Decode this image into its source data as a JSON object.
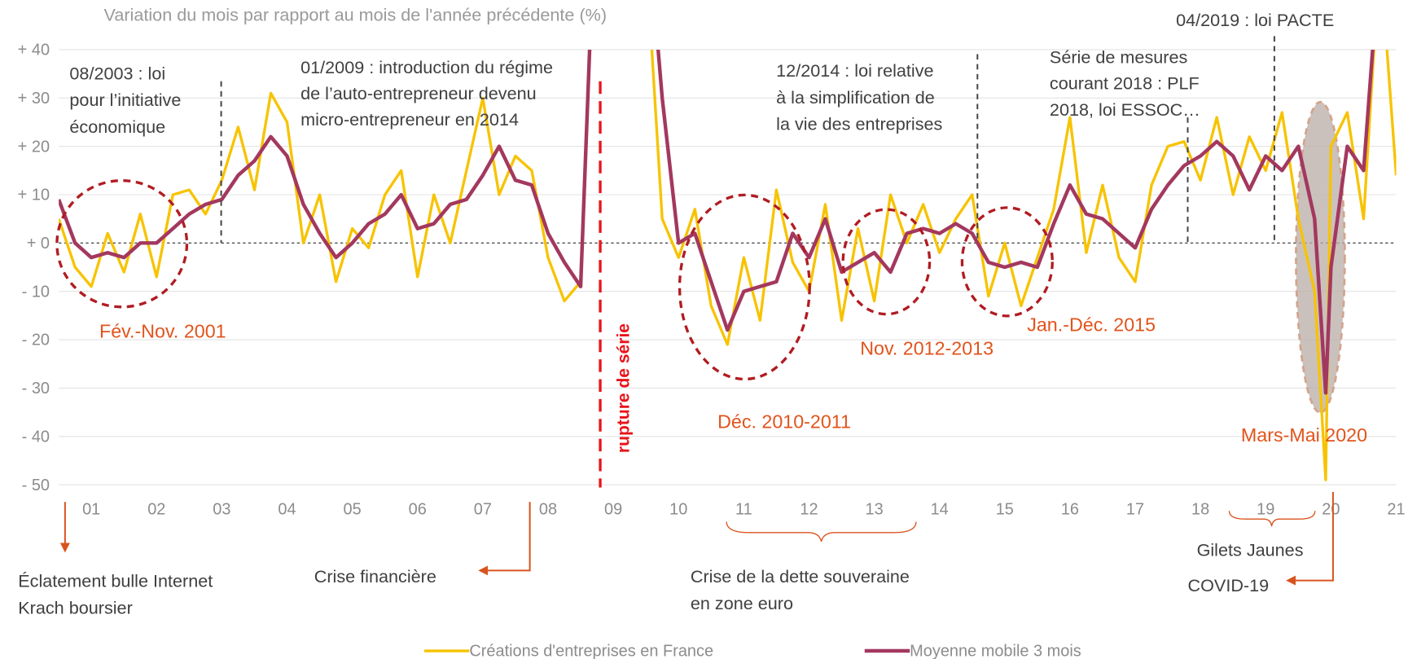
{
  "chart_data": {
    "type": "line",
    "subtitle": "Variation du mois par rapport au mois de l'année précédente (%)",
    "xlim": [
      2001,
      2021.5
    ],
    "ylim": [
      -50,
      40
    ],
    "grid": true,
    "xticks": [
      {
        "value": 2001.5,
        "label": "01"
      },
      {
        "value": 2002.5,
        "label": "02"
      },
      {
        "value": 2003.5,
        "label": "03"
      },
      {
        "value": 2004.5,
        "label": "04"
      },
      {
        "value": 2005.5,
        "label": "05"
      },
      {
        "value": 2006.5,
        "label": "06"
      },
      {
        "value": 2007.5,
        "label": "07"
      },
      {
        "value": 2008.5,
        "label": "08"
      },
      {
        "value": 2009.5,
        "label": "09"
      },
      {
        "value": 2010.5,
        "label": "10"
      },
      {
        "value": 2011.5,
        "label": "11"
      },
      {
        "value": 2012.5,
        "label": "12"
      },
      {
        "value": 2013.5,
        "label": "13"
      },
      {
        "value": 2014.5,
        "label": "14"
      },
      {
        "value": 2015.5,
        "label": "15"
      },
      {
        "value": 2016.5,
        "label": "16"
      },
      {
        "value": 2017.5,
        "label": "17"
      },
      {
        "value": 2018.5,
        "label": "18"
      },
      {
        "value": 2019.5,
        "label": "19"
      },
      {
        "value": 2020.5,
        "label": "20"
      },
      {
        "value": 2021.5,
        "label": "21"
      }
    ],
    "yticks": [
      {
        "value": 40,
        "label": "+ 40"
      },
      {
        "value": 30,
        "label": "+ 30"
      },
      {
        "value": 20,
        "label": "+ 20"
      },
      {
        "value": 10,
        "label": "+ 10"
      },
      {
        "value": 0,
        "label": "+ 0"
      },
      {
        "value": -10,
        "label": "- 10"
      },
      {
        "value": -20,
        "label": "- 20"
      },
      {
        "value": -30,
        "label": "- 30"
      },
      {
        "value": -40,
        "label": "- 40"
      },
      {
        "value": -50,
        "label": "- 50"
      }
    ],
    "x": [
      2001,
      2001.25,
      2001.5,
      2001.75,
      2002,
      2002.25,
      2002.5,
      2002.75,
      2003,
      2003.25,
      2003.5,
      2003.75,
      2004,
      2004.25,
      2004.5,
      2004.75,
      2005,
      2005.25,
      2005.5,
      2005.75,
      2006,
      2006.25,
      2006.5,
      2006.75,
      2007,
      2007.25,
      2007.5,
      2007.75,
      2008,
      2008.25,
      2008.5,
      2008.75,
      2009,
      2009.25,
      2009.5,
      2009.75,
      2010,
      2010.25,
      2010.5,
      2010.75,
      2011,
      2011.25,
      2011.5,
      2011.75,
      2012,
      2012.25,
      2012.5,
      2012.75,
      2013,
      2013.25,
      2013.5,
      2013.75,
      2014,
      2014.25,
      2014.5,
      2014.75,
      2015,
      2015.25,
      2015.5,
      2015.75,
      2016,
      2016.25,
      2016.5,
      2016.75,
      2017,
      2017.25,
      2017.5,
      2017.75,
      2018,
      2018.25,
      2018.5,
      2018.75,
      2019,
      2019.25,
      2019.5,
      2019.75,
      2020,
      2020.25,
      2020.42,
      2020.5,
      2020.75,
      2021,
      2021.25,
      2021.5
    ],
    "series": [
      {
        "name": "Créations d'entreprises en France",
        "color": "#f7c300",
        "width": 3,
        "values": [
          5,
          -5,
          -9,
          2,
          -6,
          6,
          -7,
          10,
          11,
          6,
          13,
          24,
          11,
          31,
          25,
          0,
          10,
          -8,
          3,
          -1,
          10,
          15,
          -7,
          10,
          0,
          15,
          30,
          10,
          18,
          15,
          -3,
          -12,
          -8,
          80,
          null,
          null,
          60,
          5,
          -3,
          7,
          -13,
          -21,
          -3,
          -16,
          11,
          -4,
          -10,
          8,
          -16,
          3,
          -12,
          10,
          0,
          8,
          -2,
          5,
          10,
          -11,
          0,
          -13,
          -3,
          7,
          26,
          -2,
          12,
          -3,
          -8,
          12,
          20,
          21,
          13,
          26,
          10,
          22,
          15,
          27,
          5,
          -10,
          -49,
          20,
          27,
          5,
          60,
          14
        ]
      },
      {
        "name": "Moyenne mobile 3 mois",
        "color": "#a3385f",
        "width": 4,
        "values": [
          9,
          0,
          -3,
          -2,
          -3,
          0,
          0,
          3,
          6,
          8,
          9,
          14,
          17,
          22,
          18,
          8,
          2,
          -3,
          0,
          4,
          6,
          10,
          3,
          4,
          8,
          9,
          14,
          20,
          13,
          12,
          2,
          -4,
          -9,
          80,
          null,
          null,
          70,
          30,
          0,
          2,
          -8,
          -18,
          -10,
          -9,
          -8,
          2,
          -3,
          5,
          -6,
          -4,
          -2,
          -6,
          2,
          3,
          2,
          4,
          2,
          -4,
          -5,
          -4,
          -5,
          4,
          12,
          6,
          5,
          2,
          -1,
          7,
          12,
          16,
          18,
          21,
          18,
          11,
          18,
          15,
          20,
          5,
          -31,
          -5,
          20,
          15,
          60,
          null
        ]
      }
    ],
    "legend_position": "bottom",
    "annotations": [
      {
        "lines": [
          "08/2003 : loi",
          "pour l’initiative",
          "économique"
        ]
      },
      {
        "lines": [
          "01/2009 : introduction du régime",
          "de l’auto-entrepreneur devenu",
          "micro-entrepreneur en 2014"
        ]
      },
      {
        "lines": [
          "12/2014 : loi relative",
          "à la simplification de",
          "la vie des entreprises"
        ]
      },
      {
        "lines": [
          "Série de mesures",
          "courant 2018 : PLF",
          "2018, loi ESSOC…"
        ]
      },
      {
        "lines": [
          "04/2019 : loi PACTE"
        ]
      }
    ],
    "period_labels": [
      "Fév.-Nov. 2001",
      "Déc. 2010-2011",
      "Nov. 2012-2013",
      "Jan.-Déc. 2015",
      "Mars-Mai 2020"
    ],
    "event_labels": [
      {
        "lines": [
          "Éclatement bulle Internet",
          "Krach boursier"
        ]
      },
      {
        "lines": [
          "Crise financière"
        ]
      },
      {
        "lines": [
          "Crise de la dette souveraine",
          "en zone euro"
        ]
      },
      {
        "lines": [
          "Gilets Jaunes"
        ]
      },
      {
        "lines": [
          "COVID-19"
        ]
      }
    ],
    "rupture_label": "rupture de série"
  }
}
